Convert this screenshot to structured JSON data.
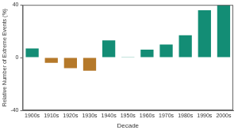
{
  "chart_data": {
    "type": "bar",
    "x_label": "Decade",
    "y_label": "Relative Number of Extreme Events (%)",
    "categories": [
      "1900s",
      "1910s",
      "1920s",
      "1930s",
      "1940s",
      "1950s",
      "1960s",
      "1970s",
      "1980s",
      "1990s",
      "2000s"
    ],
    "values": [
      7,
      -4,
      -8,
      -10,
      13,
      0.5,
      6,
      10,
      17,
      36,
      40
    ],
    "colors": [
      "#138d75",
      "#b5792a",
      "#b5792a",
      "#b5792a",
      "#138d75",
      "#138d75",
      "#138d75",
      "#138d75",
      "#138d75",
      "#138d75",
      "#138d75"
    ],
    "ylim": [
      -40,
      40
    ],
    "yticks": [
      -40,
      0,
      40
    ],
    "grid": false
  }
}
